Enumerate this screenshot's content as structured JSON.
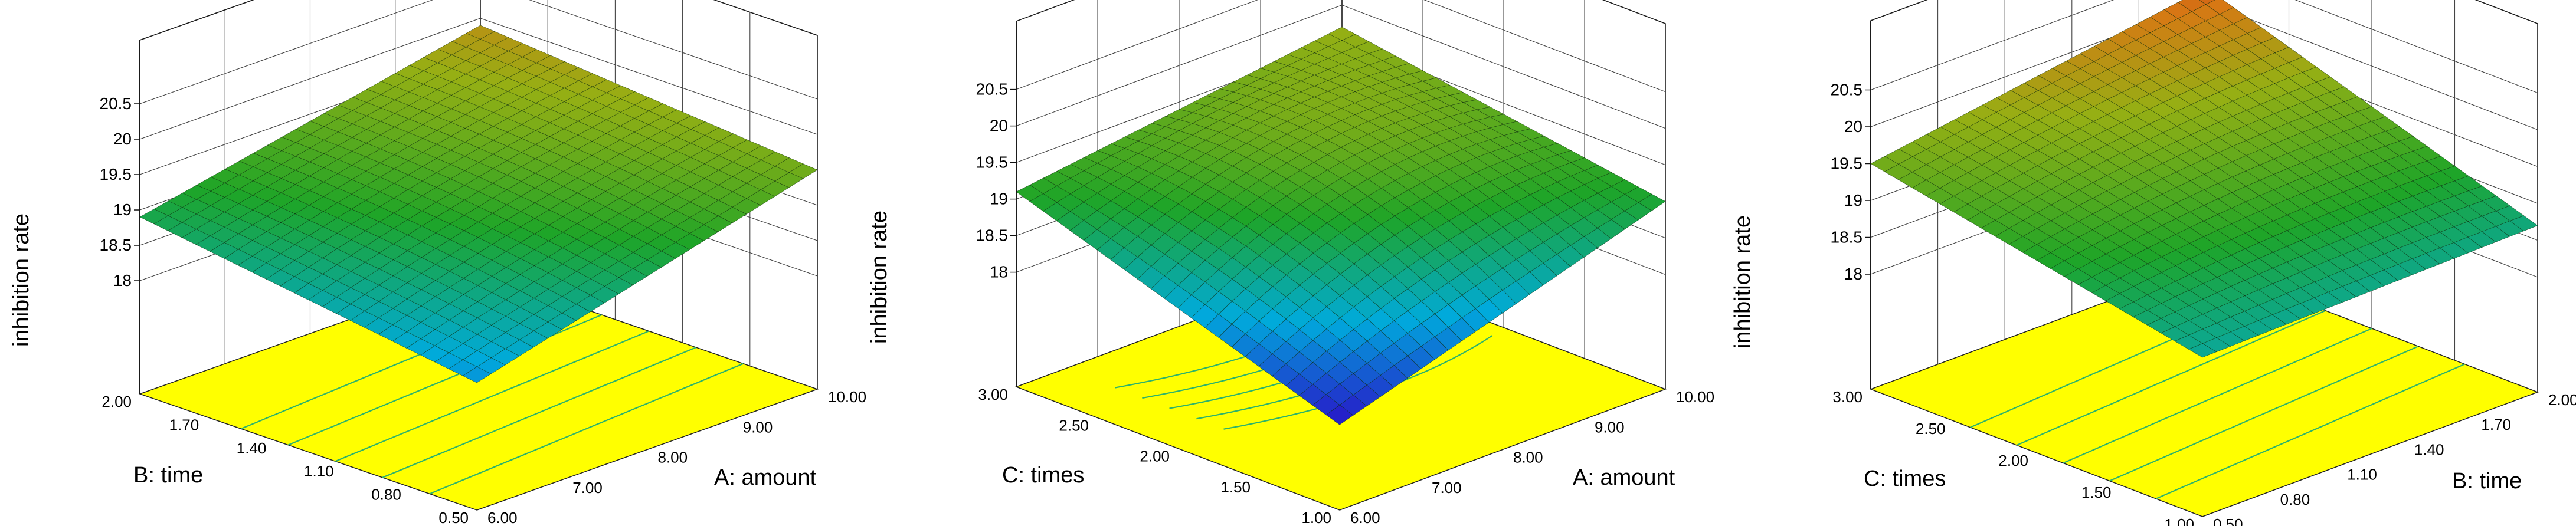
{
  "colors": {
    "floor": "#ffff00",
    "contour": "#2db36b",
    "box": "#111111"
  },
  "chart_data": [
    {
      "type": "surface3d",
      "zlabel": "inhibition rate",
      "xlabel": "A: amount",
      "ylabel": "B: time",
      "zticks": [
        "18",
        "18.5",
        "19",
        "19.5",
        "20",
        "20.5"
      ],
      "zlim": [
        18,
        20.5
      ],
      "xticks": [
        "6.00",
        "7.00",
        "8.00",
        "9.00",
        "10.00"
      ],
      "xlim": [
        6,
        10
      ],
      "yticks": [
        "0.50",
        "0.80",
        "1.10",
        "1.40",
        "1.70",
        "2.00"
      ],
      "ylim": [
        0.5,
        2.0
      ],
      "corners": {
        "x_min_y_min": 18.2,
        "x_max_y_min": 19.5,
        "x_min_y_max": 18.9,
        "x_max_y_max": 19.9
      },
      "center_bulge": 0.2
    },
    {
      "type": "surface3d",
      "zlabel": "inhibition rate",
      "xlabel": "A: amount",
      "ylabel": "C: times",
      "zticks": [
        "18",
        "18.5",
        "19",
        "19.5",
        "20",
        "20.5"
      ],
      "zlim": [
        18,
        20.5
      ],
      "xticks": [
        "6.00",
        "7.00",
        "8.00",
        "9.00",
        "10.00"
      ],
      "xlim": [
        6,
        10
      ],
      "yticks": [
        "1.00",
        "1.50",
        "2.00",
        "2.50",
        "3.00"
      ],
      "ylim": [
        1.0,
        3.0
      ],
      "corners": {
        "x_min_y_min": 17.6,
        "x_max_y_min": 19.0,
        "x_min_y_max": 19.1,
        "x_max_y_max": 19.7
      },
      "center_bulge": 0.9
    },
    {
      "type": "surface3d",
      "zlabel": "inhibition rate",
      "xlabel": "B: time",
      "ylabel": "C: times",
      "zticks": [
        "18",
        "18.5",
        "19",
        "19.5",
        "20",
        "20.5"
      ],
      "zlim": [
        18,
        20.5
      ],
      "xticks": [
        "0.50",
        "0.80",
        "1.10",
        "1.40",
        "1.70",
        "2.00"
      ],
      "xlim": [
        0.5,
        2.0
      ],
      "yticks": [
        "1.00",
        "1.50",
        "2.00",
        "2.50",
        "3.00"
      ],
      "ylim": [
        1.0,
        3.0
      ],
      "corners": {
        "x_min_y_min": 18.6,
        "x_max_y_min": 18.7,
        "x_min_y_max": 19.5,
        "x_max_y_max": 20.2
      },
      "center_bulge": 0.25
    }
  ]
}
